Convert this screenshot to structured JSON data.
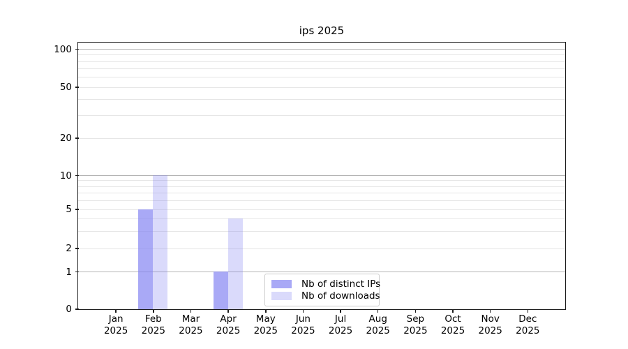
{
  "title": "ips 2025",
  "chart_data": {
    "type": "bar",
    "title": "ips 2025",
    "categories": [
      "Jan",
      "Feb",
      "Mar",
      "Apr",
      "May",
      "Jun",
      "Jul",
      "Aug",
      "Sep",
      "Oct",
      "Nov",
      "Dec"
    ],
    "category_year": "2025",
    "series": [
      {
        "name": "Nb of distinct IPs",
        "color": "rgba(132,132,242,0.7)",
        "values": [
          0,
          5,
          0,
          1,
          0,
          0,
          0,
          0,
          0,
          0,
          0,
          0
        ]
      },
      {
        "name": "Nb of downloads",
        "color": "rgba(132,132,242,0.3)",
        "values": [
          0,
          10,
          0,
          4,
          0,
          0,
          0,
          0,
          0,
          0,
          0,
          0
        ]
      }
    ],
    "xlabel": "",
    "ylabel": "",
    "y_axis": {
      "scale": "log-like",
      "tick_labels": [
        0,
        1,
        2,
        5,
        10,
        20,
        50,
        100
      ],
      "minor_gridlines": [
        3,
        4,
        6,
        7,
        8,
        9,
        30,
        40,
        60,
        70,
        80,
        90
      ],
      "major_gridlines": [
        1,
        10,
        100
      ],
      "ylim": [
        0,
        113
      ]
    },
    "grid": true,
    "legend": {
      "position": "lower center inside",
      "entries": [
        "Nb of distinct IPs",
        "Nb of downloads"
      ]
    },
    "colors": {
      "bar_base": "#8484f2",
      "major_grid": "#b3b3b3",
      "minor_grid": "#e6e6e6",
      "spine": "#1c1c1c",
      "background": "#ffffff"
    }
  }
}
